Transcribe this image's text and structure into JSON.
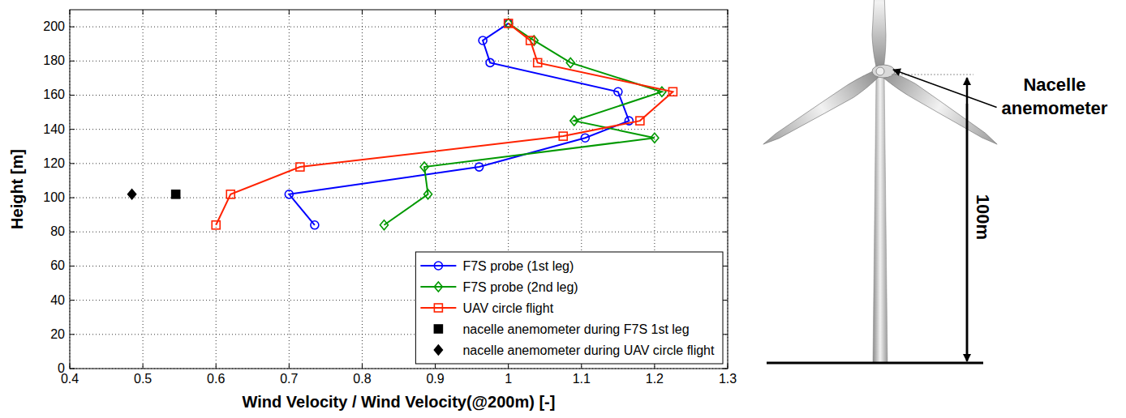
{
  "chart_data": {
    "type": "line",
    "x_label": "Wind Velocity / Wind Velocity(@200m) [-]",
    "y_label": "Height [m]",
    "xlim": [
      0.4,
      1.3
    ],
    "xticks": [
      0.4,
      0.5,
      0.6,
      0.7,
      0.8,
      0.9,
      1,
      1.1,
      1.2,
      1.3
    ],
    "ylim": [
      0,
      210
    ],
    "yticks": [
      0,
      20,
      40,
      60,
      80,
      100,
      120,
      140,
      160,
      180,
      200
    ],
    "grid": true,
    "legend": "lower right",
    "series": [
      {
        "name": "F7S probe (1st leg)",
        "color": "#0000ff",
        "type": "line",
        "marker": "circle",
        "line_style": "solid",
        "x": [
          1.0,
          0.965,
          0.975,
          1.15,
          1.165,
          1.105,
          0.96,
          0.7,
          0.735
        ],
        "values": [
          202,
          192,
          179,
          162,
          145,
          135,
          118,
          102,
          84
        ]
      },
      {
        "name": "F7S probe (2nd leg)",
        "color": "#009900",
        "type": "line",
        "marker": "diamond",
        "line_style": "solid",
        "x": [
          1.0,
          1.035,
          1.085,
          1.21,
          1.09,
          1.2,
          0.885,
          0.89,
          0.83
        ],
        "values": [
          202,
          192,
          179,
          162,
          145,
          135,
          118,
          102,
          84
        ]
      },
      {
        "name": "UAV circle flight",
        "color": "#ff2200",
        "type": "line",
        "marker": "square",
        "line_style": "solid",
        "x": [
          1.0,
          1.03,
          1.04,
          1.225,
          1.18,
          1.075,
          0.715,
          0.62,
          0.6
        ],
        "values": [
          202,
          192,
          179,
          162,
          145,
          136,
          118,
          102,
          84
        ]
      },
      {
        "name": "nacelle anemometer during F7S 1st leg",
        "color": "#000000",
        "type": "scatter",
        "marker": "square",
        "x": [
          0.545
        ],
        "values": [
          102
        ]
      },
      {
        "name": "nacelle anemometer during UAV circle flight",
        "color": "#000000",
        "type": "scatter",
        "marker": "diamond",
        "x": [
          0.485
        ],
        "values": [
          102
        ]
      }
    ]
  },
  "diagram": {
    "callout": "Nacelle anemometer",
    "dimension": "100m"
  }
}
